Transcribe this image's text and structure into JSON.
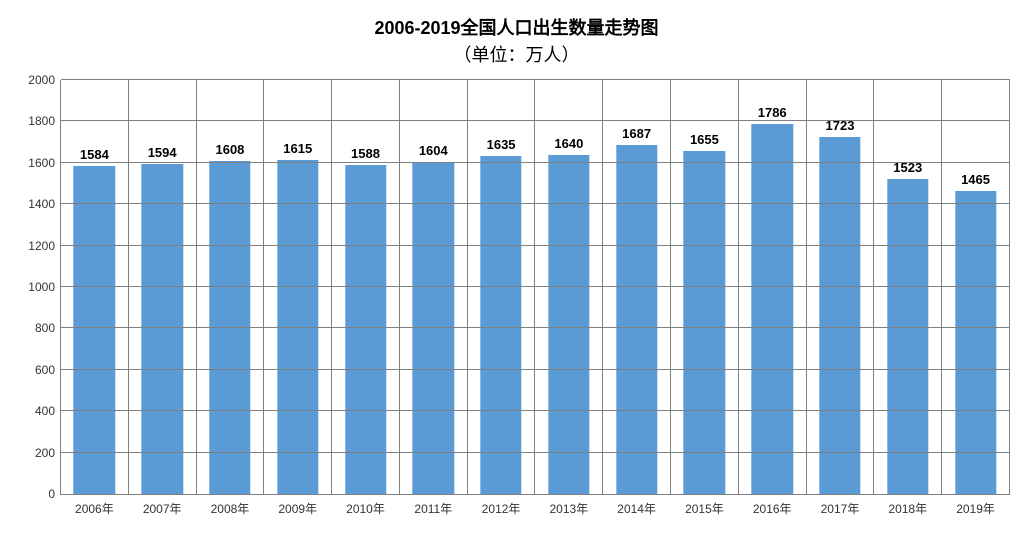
{
  "chart": {
    "type": "bar",
    "title": "2006-2019全国人口出生数量走势图",
    "subtitle": "（单位：万人）",
    "title_fontsize": 18,
    "title_fontweight": "bold",
    "subtitle_fontsize": 18,
    "background_color": "#ffffff",
    "grid_color": "#808080",
    "axis_color": "#808080",
    "bar_color": "#5b9bd5",
    "bar_width": 0.62,
    "text_color": "#000000",
    "tick_label_color": "#333333",
    "tick_label_fontsize": 12,
    "value_label_fontsize": 13,
    "value_label_fontweight": "bold",
    "ylim": [
      0,
      2000
    ],
    "ytick_step": 200,
    "yticks": [
      0,
      200,
      400,
      600,
      800,
      1000,
      1200,
      1400,
      1600,
      1800,
      2000
    ],
    "categories": [
      "2006年",
      "2007年",
      "2008年",
      "2009年",
      "2010年",
      "2011年",
      "2012年",
      "2013年",
      "2014年",
      "2015年",
      "2016年",
      "2017年",
      "2018年",
      "2019年"
    ],
    "values": [
      1584,
      1594,
      1608,
      1615,
      1588,
      1604,
      1635,
      1640,
      1687,
      1655,
      1786,
      1723,
      1523,
      1465
    ]
  }
}
